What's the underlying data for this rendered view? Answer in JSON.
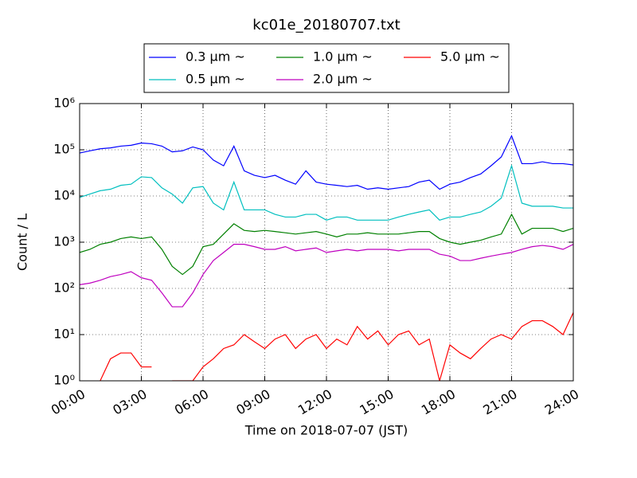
{
  "chart_data": {
    "type": "line",
    "title": "kc01e_20180707.txt",
    "xlabel": "Time on 2018-07-07 (JST)",
    "ylabel": "Count / L",
    "yscale": "log",
    "grid": true,
    "xlim": [
      0,
      24
    ],
    "ylim": [
      1,
      1000000
    ],
    "xticks": [
      {
        "value": 0,
        "label": "00:00"
      },
      {
        "value": 3,
        "label": "03:00"
      },
      {
        "value": 6,
        "label": "06:00"
      },
      {
        "value": 9,
        "label": "09:00"
      },
      {
        "value": 12,
        "label": "12:00"
      },
      {
        "value": 15,
        "label": "15:00"
      },
      {
        "value": 18,
        "label": "18:00"
      },
      {
        "value": 21,
        "label": "21:00"
      },
      {
        "value": 24,
        "label": "24:00"
      }
    ],
    "yticks": [
      {
        "value": 1,
        "label": "10⁰"
      },
      {
        "value": 10,
        "label": "10¹"
      },
      {
        "value": 100,
        "label": "10²"
      },
      {
        "value": 1000,
        "label": "10³"
      },
      {
        "value": 10000,
        "label": "10⁴"
      },
      {
        "value": 100000,
        "label": "10⁵"
      },
      {
        "value": 1000000,
        "label": "10⁶"
      }
    ],
    "x": [
      0,
      0.5,
      1,
      1.5,
      2,
      2.5,
      3,
      3.5,
      4,
      4.5,
      5,
      5.5,
      6,
      6.5,
      7,
      7.5,
      8,
      8.5,
      9,
      9.5,
      10,
      10.5,
      11,
      11.5,
      12,
      12.5,
      13,
      13.5,
      14,
      14.5,
      15,
      15.5,
      16,
      16.5,
      17,
      17.5,
      18,
      18.5,
      19,
      19.5,
      20,
      20.5,
      21,
      21.5,
      22,
      22.5,
      23,
      23.5,
      24
    ],
    "series": [
      {
        "name": "0.3 μm ~",
        "color": "#0000ff",
        "values": [
          85000,
          95000,
          105000,
          110000,
          120000,
          125000,
          140000,
          135000,
          120000,
          90000,
          95000,
          115000,
          100000,
          60000,
          45000,
          120000,
          35000,
          28000,
          25000,
          28000,
          22000,
          18000,
          35000,
          20000,
          18000,
          17000,
          16000,
          17000,
          14000,
          15000,
          14000,
          15000,
          16000,
          20000,
          22000,
          14000,
          18000,
          20000,
          25000,
          30000,
          45000,
          70000,
          200000,
          50000,
          50000,
          55000,
          50000,
          50000,
          47000
        ]
      },
      {
        "name": "0.5 μm ~",
        "color": "#00bfbf",
        "values": [
          9300,
          11000,
          13000,
          14000,
          17000,
          18000,
          26000,
          25000,
          15000,
          11000,
          7000,
          15000,
          16000,
          7000,
          5000,
          20000,
          5000,
          5000,
          5000,
          4000,
          3500,
          3500,
          4000,
          4000,
          3000,
          3500,
          3500,
          3000,
          3000,
          3000,
          3000,
          3500,
          4000,
          4500,
          5000,
          3000,
          3500,
          3500,
          4000,
          4500,
          6000,
          9000,
          45000,
          7000,
          6000,
          6000,
          6000,
          5500,
          5500
        ]
      },
      {
        "name": "1.0 μm ~",
        "color": "#008000",
        "values": [
          600,
          700,
          900,
          1000,
          1200,
          1300,
          1200,
          1300,
          700,
          300,
          200,
          300,
          800,
          900,
          1500,
          2500,
          1800,
          1700,
          1800,
          1700,
          1600,
          1500,
          1600,
          1700,
          1500,
          1300,
          1500,
          1500,
          1600,
          1500,
          1500,
          1500,
          1600,
          1700,
          1700,
          1200,
          1000,
          900,
          1000,
          1100,
          1300,
          1500,
          4000,
          1500,
          2000,
          2000,
          2000,
          1700,
          2000
        ]
      },
      {
        "name": "2.0 μm ~",
        "color": "#bf00bf",
        "values": [
          120,
          130,
          150,
          180,
          200,
          230,
          170,
          150,
          80,
          40,
          40,
          80,
          200,
          400,
          600,
          900,
          900,
          800,
          700,
          700,
          800,
          650,
          700,
          750,
          600,
          650,
          700,
          650,
          700,
          700,
          700,
          650,
          700,
          700,
          700,
          550,
          500,
          400,
          400,
          450,
          500,
          550,
          600,
          700,
          800,
          850,
          800,
          700,
          900
        ]
      },
      {
        "name": "5.0 μm ~",
        "color": "#ff0000",
        "values": [
          null,
          null,
          1,
          3,
          4,
          4,
          2,
          2,
          null,
          1,
          1,
          1,
          2,
          3,
          5,
          6,
          10,
          7,
          5,
          8,
          10,
          5,
          8,
          10,
          5,
          8,
          6,
          15,
          8,
          12,
          6,
          10,
          12,
          6,
          8,
          1,
          6,
          4,
          3,
          5,
          8,
          10,
          8,
          15,
          20,
          20,
          15,
          10,
          30
        ]
      }
    ]
  }
}
